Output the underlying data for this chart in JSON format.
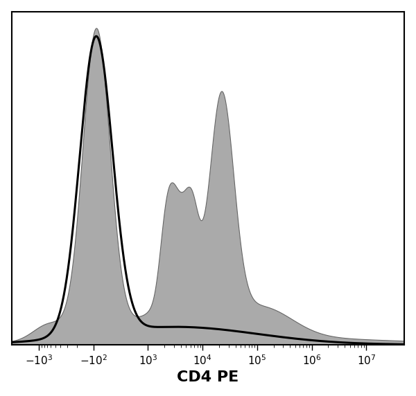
{
  "xlabel": "CD4 PE",
  "xlabel_fontsize": 16,
  "tick_fontsize": 11,
  "bg_color": "#ffffff",
  "plot_bg_color": "#ffffff",
  "border_color": "#000000",
  "gray_fill_color": "#aaaaaa",
  "gray_edge_color": "#666666",
  "black_line_color": "#000000",
  "figsize": [
    6.0,
    5.72
  ],
  "dpi": 100,
  "xlim": [
    -0.5,
    6.7
  ],
  "ylim": [
    0,
    1.08
  ],
  "tick_positions": [
    0,
    1,
    2,
    3,
    4,
    5,
    6
  ],
  "tick_labels": [
    "$-10^3$",
    "$-10^2$",
    "$10^3$",
    "$10^4$",
    "$10^5$",
    "$10^6$",
    "$10^7$"
  ]
}
